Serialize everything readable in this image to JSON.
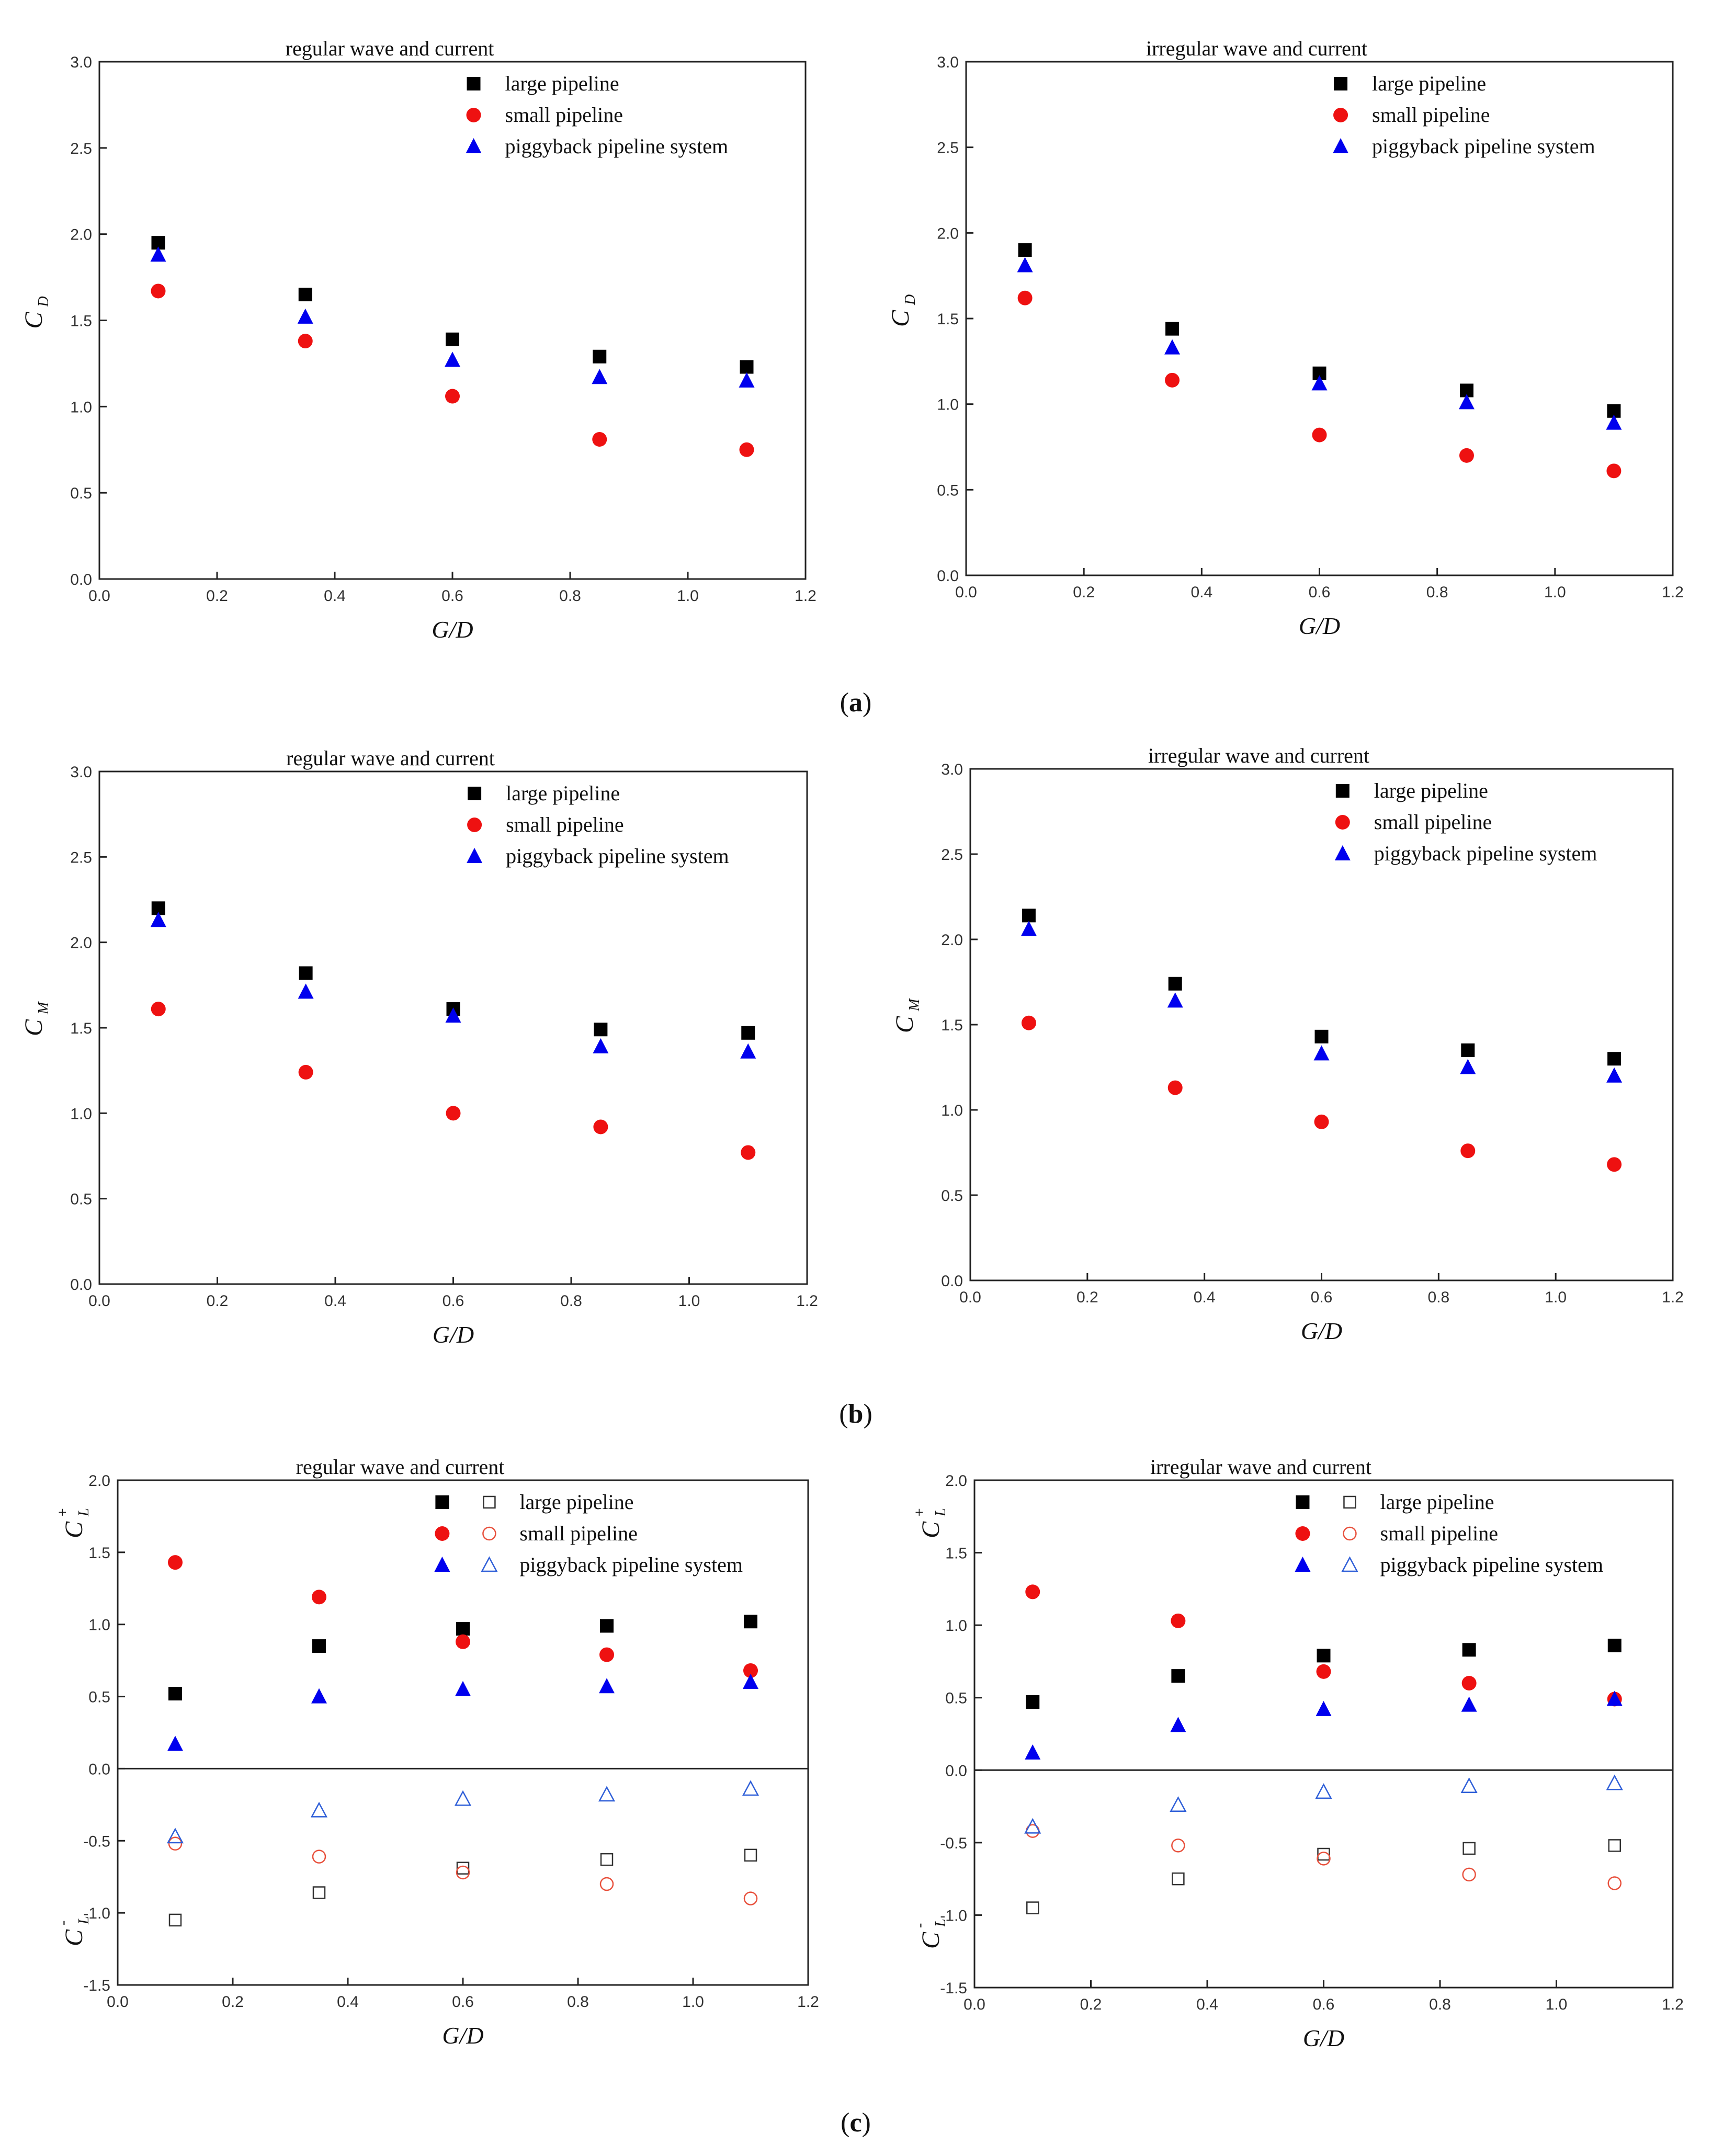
{
  "colors": {
    "large": "#000000",
    "small": "#ee1111",
    "piggy": "#0000ee",
    "small_open": "#e8503c",
    "piggy_open": "#2f5fd8",
    "large_open": "#333333"
  },
  "marker_icons": {
    "large": "filled-square-icon",
    "small": "filled-circle-icon",
    "piggy": "filled-triangle-icon",
    "large_open": "open-square-icon",
    "small_open": "open-circle-icon",
    "piggy_open": "open-triangle-icon"
  },
  "panel_labels": {
    "a": "a",
    "b": "b",
    "c": "c"
  },
  "chart_data": [
    {
      "id": "a-left",
      "type": "scatter",
      "title": "regular wave and current",
      "xlabel": "G/D",
      "ylabel": {
        "main": "C",
        "sub": "D",
        "sup": ""
      },
      "xlim": [
        0.0,
        1.2
      ],
      "ylim": [
        0.0,
        3.0
      ],
      "xticks": [
        "0.0",
        "0.2",
        "0.4",
        "0.6",
        "0.8",
        "1.0",
        "1.2"
      ],
      "yticks": [
        "0.0",
        "0.5",
        "1.0",
        "1.5",
        "2.0",
        "2.5",
        "3.0"
      ],
      "legend_position": "top-right",
      "legend": [
        "large pipeline",
        "small pipeline",
        "piggyback pipeline system"
      ],
      "x": [
        0.1,
        0.35,
        0.6,
        0.85,
        1.1
      ],
      "series": [
        {
          "name": "large pipeline",
          "marker": "large",
          "values": [
            1.95,
            1.65,
            1.39,
            1.29,
            1.23
          ]
        },
        {
          "name": "small pipeline",
          "marker": "small",
          "values": [
            1.67,
            1.38,
            1.06,
            0.81,
            0.75
          ]
        },
        {
          "name": "piggyback pipeline system",
          "marker": "piggy",
          "values": [
            1.88,
            1.52,
            1.27,
            1.17,
            1.15
          ]
        }
      ]
    },
    {
      "id": "a-right",
      "type": "scatter",
      "title": "irregular wave and current",
      "xlabel": "G/D",
      "ylabel": {
        "main": "C",
        "sub": "D",
        "sup": ""
      },
      "xlim": [
        0.0,
        1.2
      ],
      "ylim": [
        0.0,
        3.0
      ],
      "xticks": [
        "0.0",
        "0.2",
        "0.4",
        "0.6",
        "0.8",
        "1.0",
        "1.2"
      ],
      "yticks": [
        "0.0",
        "0.5",
        "1.0",
        "1.5",
        "2.0",
        "2.5",
        "3.0"
      ],
      "legend_position": "top-right",
      "legend": [
        "large pipeline",
        "small pipeline",
        "piggyback pipeline system"
      ],
      "x": [
        0.1,
        0.35,
        0.6,
        0.85,
        1.1
      ],
      "series": [
        {
          "name": "large pipeline",
          "marker": "large",
          "values": [
            1.9,
            1.44,
            1.18,
            1.08,
            0.96
          ]
        },
        {
          "name": "small pipeline",
          "marker": "small",
          "values": [
            1.62,
            1.14,
            0.82,
            0.7,
            0.61
          ]
        },
        {
          "name": "piggyback pipeline system",
          "marker": "piggy",
          "values": [
            1.81,
            1.33,
            1.12,
            1.01,
            0.89
          ]
        }
      ]
    },
    {
      "id": "b-left",
      "type": "scatter",
      "title": "regular wave and current",
      "xlabel": "G/D",
      "ylabel": {
        "main": "C",
        "sub": "M",
        "sup": ""
      },
      "xlim": [
        0.0,
        1.2
      ],
      "ylim": [
        0.0,
        3.0
      ],
      "xticks": [
        "0.0",
        "0.2",
        "0.4",
        "0.6",
        "0.8",
        "1.0",
        "1.2"
      ],
      "yticks": [
        "0.0",
        "0.5",
        "1.0",
        "1.5",
        "2.0",
        "2.5",
        "3.0"
      ],
      "legend_position": "top-right",
      "legend": [
        "large pipeline",
        "small pipeline",
        "piggyback pipeline system"
      ],
      "x": [
        0.1,
        0.35,
        0.6,
        0.85,
        1.1
      ],
      "series": [
        {
          "name": "large pipeline",
          "marker": "large",
          "values": [
            2.2,
            1.82,
            1.61,
            1.49,
            1.47
          ]
        },
        {
          "name": "small pipeline",
          "marker": "small",
          "values": [
            1.61,
            1.24,
            1.0,
            0.92,
            0.77
          ]
        },
        {
          "name": "piggyback pipeline system",
          "marker": "piggy",
          "values": [
            2.13,
            1.71,
            1.57,
            1.39,
            1.36
          ]
        }
      ]
    },
    {
      "id": "b-right",
      "type": "scatter",
      "title": "irregular wave and current",
      "xlabel": "G/D",
      "ylabel": {
        "main": "C",
        "sub": "M",
        "sup": ""
      },
      "xlim": [
        0.0,
        1.2
      ],
      "ylim": [
        0.0,
        3.0
      ],
      "xticks": [
        "0.0",
        "0.2",
        "0.4",
        "0.6",
        "0.8",
        "1.0",
        "1.2"
      ],
      "yticks": [
        "0.0",
        "0.5",
        "1.0",
        "1.5",
        "2.0",
        "2.5",
        "3.0"
      ],
      "legend_position": "top-right",
      "legend": [
        "large pipeline",
        "small pipeline",
        "piggyback pipeline system"
      ],
      "x": [
        0.1,
        0.35,
        0.6,
        0.85,
        1.1
      ],
      "series": [
        {
          "name": "large pipeline",
          "marker": "large",
          "values": [
            2.14,
            1.74,
            1.43,
            1.35,
            1.3
          ]
        },
        {
          "name": "small pipeline",
          "marker": "small",
          "values": [
            1.51,
            1.13,
            0.93,
            0.76,
            0.68
          ]
        },
        {
          "name": "piggyback pipeline system",
          "marker": "piggy",
          "values": [
            2.06,
            1.64,
            1.33,
            1.25,
            1.2
          ]
        }
      ]
    },
    {
      "id": "c-left",
      "type": "scatter",
      "title": "regular wave and current",
      "xlabel": "G/D",
      "ylabel": {
        "main": "C",
        "sub": "L",
        "sup": "+"
      },
      "ylabel2": {
        "main": "C",
        "sub": "L",
        "sup": "-"
      },
      "xlim": [
        0.0,
        1.2
      ],
      "ylim": [
        -1.5,
        2.0
      ],
      "xticks": [
        "0.0",
        "0.2",
        "0.4",
        "0.6",
        "0.8",
        "1.0",
        "1.2"
      ],
      "yticks": [
        "-1.5",
        "-1.0",
        "-0.5",
        "0.0",
        "0.5",
        "1.0",
        "1.5",
        "2.0"
      ],
      "zero_line": true,
      "legend_position": "top-right",
      "legend": [
        "large pipeline",
        "small pipeline",
        "piggyback pipeline system"
      ],
      "legend_open_markers": true,
      "x": [
        0.1,
        0.35,
        0.6,
        0.85,
        1.1
      ],
      "series": [
        {
          "name": "large pipeline",
          "marker": "large",
          "values": [
            0.52,
            0.85,
            0.97,
            0.99,
            1.02
          ]
        },
        {
          "name": "small pipeline",
          "marker": "small",
          "values": [
            1.43,
            1.19,
            0.88,
            0.79,
            0.68
          ]
        },
        {
          "name": "piggyback pipeline system",
          "marker": "piggy",
          "values": [
            0.17,
            0.5,
            0.55,
            0.57,
            0.6
          ]
        },
        {
          "name": "large pipeline",
          "marker": "large_open",
          "values": [
            -1.05,
            -0.86,
            -0.69,
            -0.63,
            -0.6
          ]
        },
        {
          "name": "small pipeline",
          "marker": "small_open",
          "values": [
            -0.52,
            -0.61,
            -0.72,
            -0.8,
            -0.9
          ]
        },
        {
          "name": "piggyback pipeline system",
          "marker": "piggy_open",
          "values": [
            -0.47,
            -0.29,
            -0.21,
            -0.18,
            -0.14
          ]
        }
      ]
    },
    {
      "id": "c-right",
      "type": "scatter",
      "title": "irregular wave and current",
      "xlabel": "G/D",
      "ylabel": {
        "main": "C",
        "sub": "L",
        "sup": "+"
      },
      "ylabel2": {
        "main": "C",
        "sub": "L",
        "sup": "-"
      },
      "xlim": [
        0.0,
        1.2
      ],
      "ylim": [
        -1.5,
        2.0
      ],
      "xticks": [
        "0.0",
        "0.2",
        "0.4",
        "0.6",
        "0.8",
        "1.0",
        "1.2"
      ],
      "yticks": [
        "-1.5",
        "-1.0",
        "-0.5",
        "0.0",
        "0.5",
        "1.0",
        "1.5",
        "2.0"
      ],
      "zero_line": true,
      "legend_position": "top-right",
      "legend": [
        "large pipeline",
        "small pipeline",
        "piggyback pipeline system"
      ],
      "legend_open_markers": true,
      "x": [
        0.1,
        0.35,
        0.6,
        0.85,
        1.1
      ],
      "series": [
        {
          "name": "large pipeline",
          "marker": "large",
          "values": [
            0.47,
            0.65,
            0.79,
            0.83,
            0.86
          ]
        },
        {
          "name": "small pipeline",
          "marker": "small",
          "values": [
            1.23,
            1.03,
            0.68,
            0.6,
            0.49
          ]
        },
        {
          "name": "piggyback pipeline system",
          "marker": "piggy",
          "values": [
            0.12,
            0.31,
            0.42,
            0.45,
            0.49
          ]
        },
        {
          "name": "large pipeline",
          "marker": "large_open",
          "values": [
            -0.95,
            -0.75,
            -0.58,
            -0.54,
            -0.52
          ]
        },
        {
          "name": "small pipeline",
          "marker": "small_open",
          "values": [
            -0.42,
            -0.52,
            -0.61,
            -0.72,
            -0.78
          ]
        },
        {
          "name": "piggyback pipeline system",
          "marker": "piggy_open",
          "values": [
            -0.39,
            -0.24,
            -0.15,
            -0.11,
            -0.09
          ]
        }
      ]
    }
  ]
}
